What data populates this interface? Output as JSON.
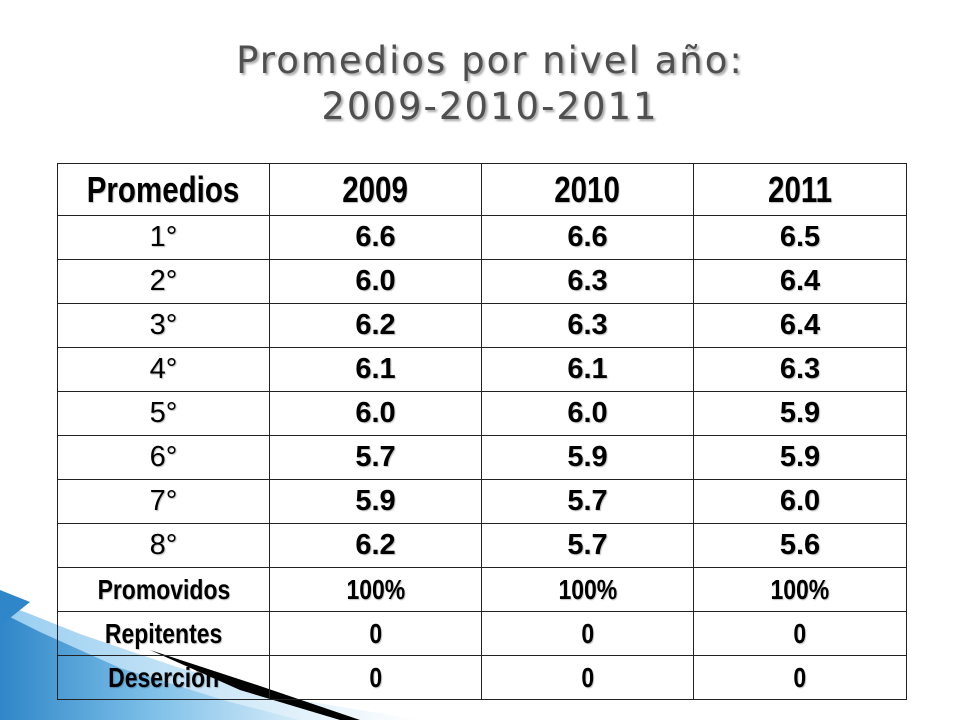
{
  "title": {
    "line1": "Promedios por nivel año:",
    "line2": "2009-2010-2011"
  },
  "table": {
    "headers": [
      "Promedios",
      "2009",
      "2010",
      "2011"
    ],
    "rows": [
      [
        "1°",
        "6.6",
        "6.6",
        "6.5"
      ],
      [
        "2°",
        "6.0",
        "6.3",
        "6.4"
      ],
      [
        "3°",
        "6.2",
        "6.3",
        "6.4"
      ],
      [
        "4°",
        "6.1",
        "6.1",
        "6.3"
      ],
      [
        "5°",
        "6.0",
        "6.0",
        "5.9"
      ],
      [
        "6°",
        "5.7",
        "5.9",
        "5.9"
      ],
      [
        "7°",
        "5.9",
        "5.7",
        "6.0"
      ],
      [
        "8°",
        "6.2",
        "5.7",
        "5.6"
      ]
    ],
    "summary_rows": [
      [
        "Promovidos",
        "100%",
        "100%",
        "100%"
      ],
      [
        "Repitentes",
        "0",
        "0",
        "0"
      ],
      [
        "Deserción",
        "0",
        "0",
        "0"
      ]
    ]
  },
  "colors": {
    "title": "#4f4f4f",
    "swoosh_blue": "#4a9fd8",
    "swoosh_light": "#a9d4ef",
    "swoosh_dark": "#000000"
  }
}
